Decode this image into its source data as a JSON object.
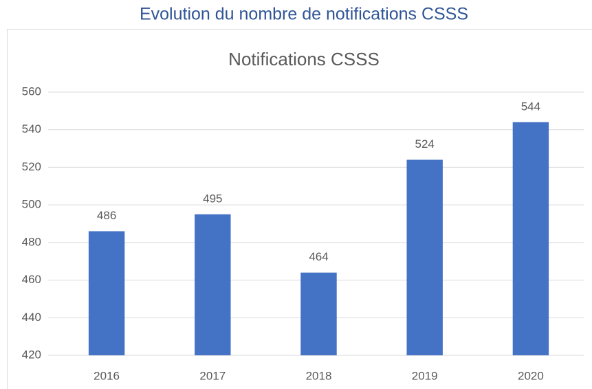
{
  "heading": "Evolution du nombre de notifications CSSS",
  "chart_data": {
    "type": "bar",
    "title": "Notifications CSSS",
    "categories": [
      "2016",
      "2017",
      "2018",
      "2019",
      "2020"
    ],
    "values": [
      486,
      495,
      464,
      524,
      544
    ],
    "color": "#4472c4",
    "ylim": [
      420,
      560
    ],
    "yticks": [
      420,
      440,
      460,
      480,
      500,
      520,
      540,
      560
    ],
    "grid": true
  }
}
